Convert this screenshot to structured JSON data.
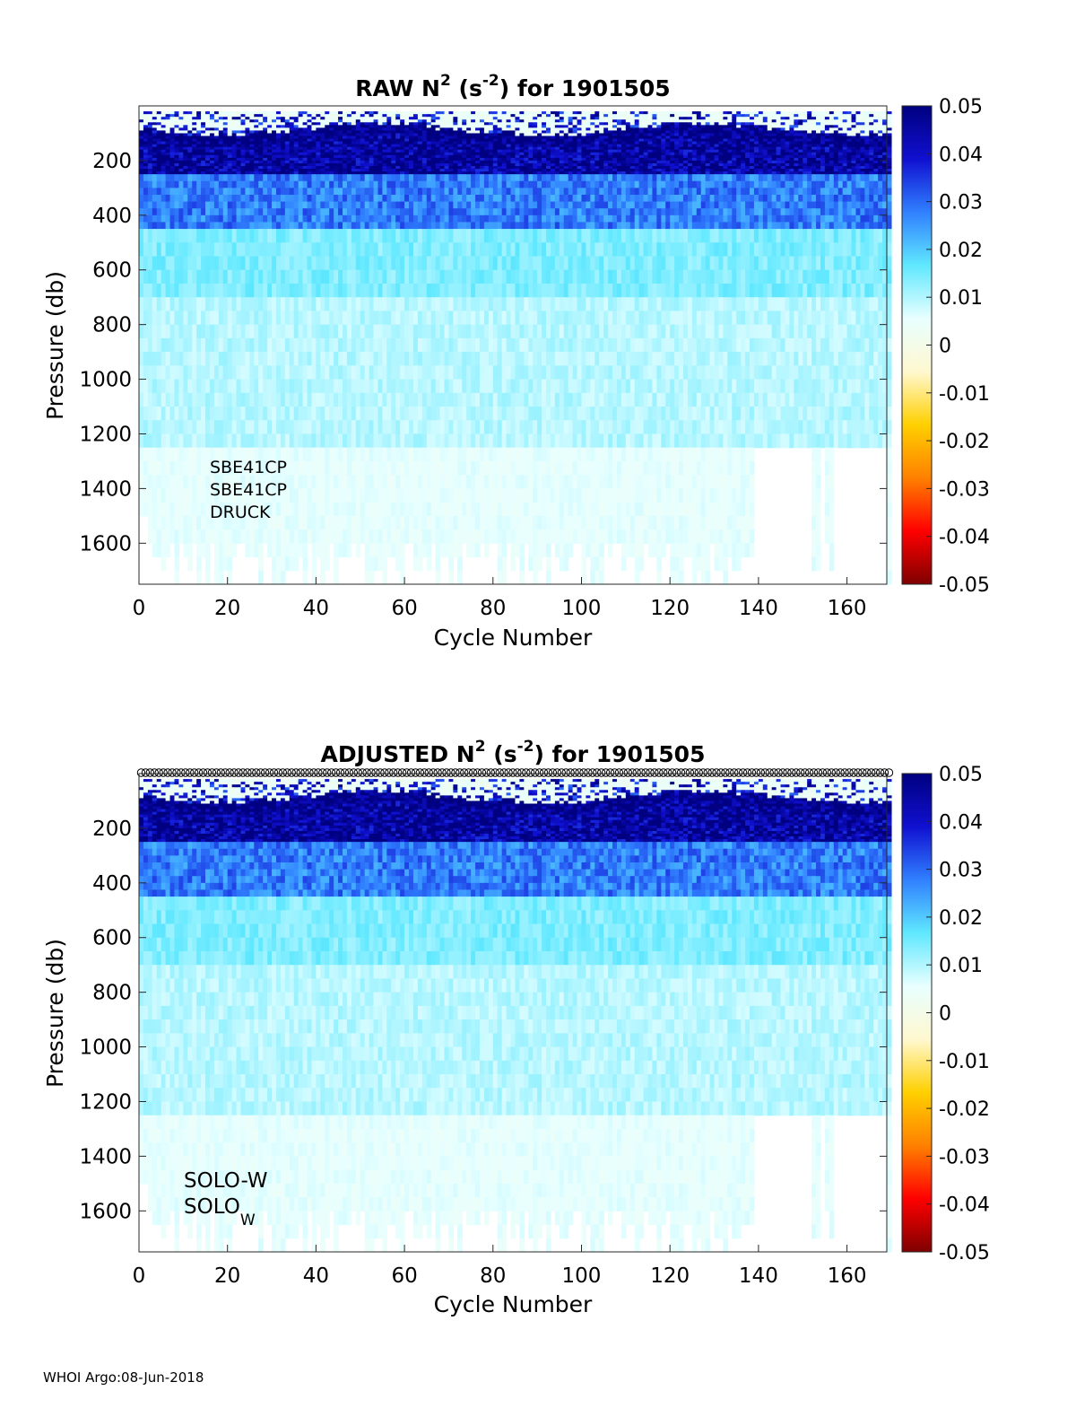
{
  "footer": "WHOI Argo:08-Jun-2018",
  "colorbar": {
    "ticks": [
      "0.05",
      "0.04",
      "0.03",
      "0.02",
      "0.01",
      "0",
      "-0.01",
      "-0.02",
      "-0.03",
      "-0.04",
      "-0.05"
    ],
    "range": [
      -0.05,
      0.05
    ],
    "colormap": [
      "#7f0000",
      "#ff0000",
      "#ff8000",
      "#ffd000",
      "#fff8d0",
      "#e8ffff",
      "#60e8ff",
      "#3080ff",
      "#1010d0",
      "#000080"
    ]
  },
  "chart_data": [
    {
      "type": "heatmap",
      "title_main": "RAW N",
      "title_exp": "2",
      "title_mid": " (s",
      "title_exp2": "-2",
      "title_end": ") for 1901505",
      "xlabel": "Cycle Number",
      "ylabel": "Pressure (db)",
      "xlim": [
        0,
        169
      ],
      "ylim": [
        1750,
        0
      ],
      "xticks": [
        "0",
        "20",
        "40",
        "60",
        "80",
        "100",
        "120",
        "140",
        "160"
      ],
      "yticks": [
        "200",
        "400",
        "600",
        "800",
        "1000",
        "1200",
        "1400",
        "1600"
      ],
      "annotations": [
        "SBE41CP",
        "SBE41CP",
        "DRUCK"
      ],
      "qc_markers": false
    },
    {
      "type": "heatmap",
      "title_main": "ADJUSTED N",
      "title_exp": "2",
      "title_mid": " (s",
      "title_exp2": "-2",
      "title_end": ") for 1901505",
      "xlabel": "Cycle Number",
      "ylabel": "Pressure (db)",
      "xlim": [
        0,
        169
      ],
      "ylim": [
        1750,
        0
      ],
      "xticks": [
        "0",
        "20",
        "40",
        "60",
        "80",
        "100",
        "120",
        "140",
        "160"
      ],
      "yticks": [
        "200",
        "400",
        "600",
        "800",
        "1000",
        "1200",
        "1400",
        "1600"
      ],
      "annotations": [
        "SOLO-W",
        "SOLO"
      ],
      "annotation_sub": "W",
      "qc_markers": true
    }
  ]
}
